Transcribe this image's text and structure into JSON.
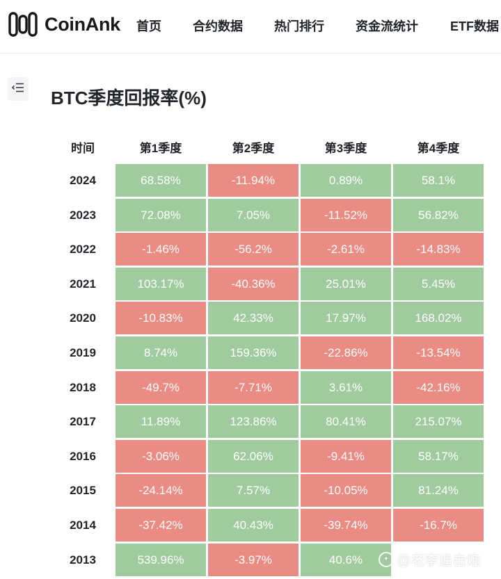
{
  "brand": {
    "name": "CoinAnk",
    "logo_icon": "coinank-logo-icon"
  },
  "nav": {
    "items": [
      {
        "label": "首页"
      },
      {
        "label": "合约数据"
      },
      {
        "label": "热门排行"
      },
      {
        "label": "资金流统计"
      },
      {
        "label": "ETF数据"
      }
    ]
  },
  "page": {
    "title": "BTC季度回报率(%)",
    "toc_icon": "list-indent-icon"
  },
  "table": {
    "headers": [
      "时间",
      "第1季度",
      "第2季度",
      "第3季度",
      "第4季度"
    ],
    "colors": {
      "positive": "#9fcb9e",
      "negative": "#ea8b84"
    },
    "rows": [
      {
        "year": "2024",
        "q": [
          "68.58%",
          "-11.94%",
          "0.89%",
          "58.1%"
        ]
      },
      {
        "year": "2023",
        "q": [
          "72.08%",
          "7.05%",
          "-11.52%",
          "56.82%"
        ]
      },
      {
        "year": "2022",
        "q": [
          "-1.46%",
          "-56.2%",
          "-2.61%",
          "-14.83%"
        ]
      },
      {
        "year": "2021",
        "q": [
          "103.17%",
          "-40.36%",
          "25.01%",
          "5.45%"
        ]
      },
      {
        "year": "2020",
        "q": [
          "-10.83%",
          "42.33%",
          "17.97%",
          "168.02%"
        ]
      },
      {
        "year": "2019",
        "q": [
          "8.74%",
          "159.36%",
          "-22.86%",
          "-13.54%"
        ]
      },
      {
        "year": "2018",
        "q": [
          "-49.7%",
          "-7.71%",
          "3.61%",
          "-42.16%"
        ]
      },
      {
        "year": "2017",
        "q": [
          "11.89%",
          "123.86%",
          "80.41%",
          "215.07%"
        ]
      },
      {
        "year": "2016",
        "q": [
          "-3.06%",
          "62.06%",
          "-9.41%",
          "58.17%"
        ]
      },
      {
        "year": "2015",
        "q": [
          "-24.14%",
          "7.57%",
          "-10.05%",
          "81.24%"
        ]
      },
      {
        "year": "2014",
        "q": [
          "-37.42%",
          "40.43%",
          "-39.74%",
          "-16.7%"
        ]
      },
      {
        "year": "2013",
        "q": [
          "539.96%",
          "-3.97%",
          "40.6%",
          ""
        ]
      }
    ]
  },
  "watermark": {
    "text": "@老李追击炮"
  }
}
